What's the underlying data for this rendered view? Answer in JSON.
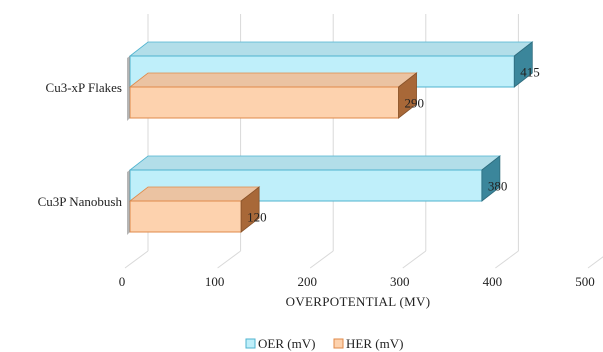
{
  "chart_data": {
    "type": "bar",
    "orientation": "horizontal",
    "style": "3d",
    "categories": [
      "Cu3-xP Flakes",
      "Cu3P Nanobush"
    ],
    "series": [
      {
        "name": "OER (mV)",
        "values": [
          415,
          380
        ],
        "color": "#BFEFFA",
        "edge_color": "#4FB3CF"
      },
      {
        "name": "HER (mV)",
        "values": [
          290,
          120
        ],
        "color": "#FDD2AE",
        "edge_color": "#E08A4A"
      }
    ],
    "xlabel": "OVERPOTENTIAL  (MV)",
    "ylabel": "",
    "title": "",
    "xlim": [
      0,
      500
    ],
    "xticks": [
      "0",
      "100",
      "200",
      "300",
      "400",
      "500"
    ],
    "grid": "vertical",
    "legend_position": "bottom"
  }
}
